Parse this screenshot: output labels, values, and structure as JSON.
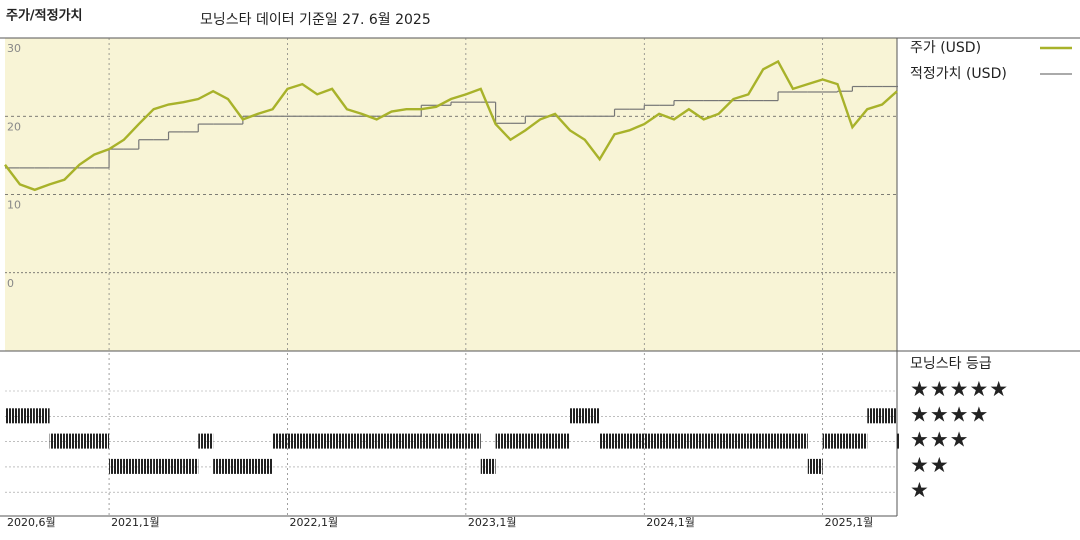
{
  "chart_data": {
    "type": "line",
    "title": "주가/적정가치",
    "subtitle": "모닝스타 데이터 기준일 27. 6월 2025",
    "x": [
      "2020-06",
      "2020-07",
      "2020-08",
      "2020-09",
      "2020-10",
      "2020-11",
      "2020-12",
      "2021-01",
      "2021-02",
      "2021-03",
      "2021-04",
      "2021-05",
      "2021-06",
      "2021-07",
      "2021-08",
      "2021-09",
      "2021-10",
      "2021-11",
      "2021-12",
      "2022-01",
      "2022-02",
      "2022-03",
      "2022-04",
      "2022-05",
      "2022-06",
      "2022-07",
      "2022-08",
      "2022-09",
      "2022-10",
      "2022-11",
      "2022-12",
      "2023-01",
      "2023-02",
      "2023-03",
      "2023-04",
      "2023-05",
      "2023-06",
      "2023-07",
      "2023-08",
      "2023-09",
      "2023-10",
      "2023-11",
      "2023-12",
      "2024-01",
      "2024-02",
      "2024-03",
      "2024-04",
      "2024-05",
      "2024-06",
      "2024-07",
      "2024-08",
      "2024-09",
      "2024-10",
      "2024-11",
      "2024-12",
      "2025-01",
      "2025-02",
      "2025-03",
      "2025-04",
      "2025-05",
      "2025-06"
    ],
    "series": [
      {
        "name": "주가 (USD)",
        "color": "#a8b22a",
        "values": [
          13.8,
          11.3,
          10.6,
          11.3,
          11.9,
          13.8,
          15.1,
          15.8,
          17,
          19,
          20.9,
          21.5,
          21.8,
          22.2,
          23.2,
          22.2,
          19.6,
          20.3,
          20.9,
          23.5,
          24.1,
          22.8,
          23.5,
          20.9,
          20.3,
          19.6,
          20.6,
          20.9,
          20.9,
          21.2,
          22.2,
          22.8,
          23.5,
          19,
          17,
          18.2,
          19.6,
          20.3,
          18.2,
          17,
          14.5,
          17.7,
          18.2,
          19,
          20.3,
          19.6,
          20.9,
          19.6,
          20.3,
          22.2,
          22.8,
          26,
          27,
          23.5,
          24.1,
          24.7,
          24.1,
          18.6,
          20.9,
          21.5,
          23.2
        ]
      },
      {
        "name": "적정가치 (USD)",
        "color": "#777777",
        "values": [
          13.4,
          13.4,
          13.4,
          13.4,
          13.4,
          13.4,
          13.4,
          15.8,
          15.8,
          17,
          17,
          18,
          18,
          19,
          19,
          19,
          20,
          20,
          20,
          20,
          20,
          20,
          20,
          20,
          20,
          20,
          20,
          20,
          21.4,
          21.4,
          21.8,
          21.8,
          21.8,
          19.1,
          19.1,
          20,
          20,
          20,
          20,
          20,
          20,
          20.9,
          20.9,
          21.4,
          21.4,
          22,
          22,
          22,
          22,
          22,
          22,
          22,
          23.1,
          23.1,
          23.1,
          23.1,
          23.2,
          23.8,
          23.8,
          23.8,
          23.8
        ]
      }
    ],
    "xlim": [
      "2020-06",
      "2025-06"
    ],
    "xticks": [
      {
        "value": "2020-06",
        "label": "2020,6월"
      },
      {
        "value": "2021-01",
        "label": "2021,1월"
      },
      {
        "value": "2022-01",
        "label": "2022,1월"
      },
      {
        "value": "2023-01",
        "label": "2023,1월"
      },
      {
        "value": "2024-01",
        "label": "2024,1월"
      },
      {
        "value": "2025-01",
        "label": "2025,1월"
      }
    ],
    "ylim": [
      -10,
      30
    ],
    "yticks": [
      0,
      10,
      20,
      30
    ],
    "grid": true,
    "rating_title": "모닝스타 등급",
    "ratings": [
      4,
      4,
      4,
      3,
      3,
      3,
      3,
      2,
      2,
      2,
      2,
      2,
      2,
      3,
      2,
      2,
      2,
      2,
      3,
      3,
      3,
      3,
      3,
      3,
      3,
      3,
      3,
      3,
      3,
      3,
      3,
      3,
      2,
      3,
      3,
      3,
      3,
      3,
      4,
      4,
      3,
      3,
      3,
      3,
      3,
      3,
      3,
      3,
      3,
      3,
      3,
      3,
      3,
      3,
      2,
      3,
      3,
      3,
      4,
      4,
      3
    ],
    "rating_color": "#222222",
    "rating_ticks": [
      {
        "value": 5,
        "label": "★★★★★"
      },
      {
        "value": 4,
        "label": "★★★★"
      },
      {
        "value": 3,
        "label": "★★★"
      },
      {
        "value": 2,
        "label": "★★"
      },
      {
        "value": 1,
        "label": "★"
      }
    ]
  }
}
